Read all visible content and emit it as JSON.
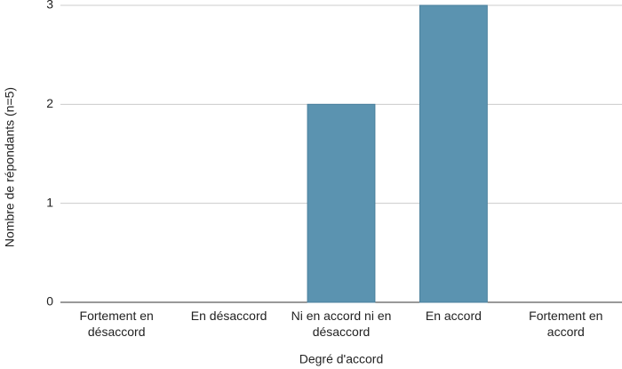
{
  "chart_data": {
    "type": "bar",
    "x_label": "Degré d'accord",
    "y_label": "Nombre de répondants (n=5)",
    "categories": [
      "Fortement en désaccord",
      "En désaccord",
      "Ni en accord ni en désaccord",
      "En accord",
      "Fortement en accord"
    ],
    "values": [
      0,
      0,
      2,
      3,
      0
    ],
    "color": "#5b93b0",
    "ylim": [
      0,
      3
    ],
    "yticks": [
      0,
      1,
      2,
      3
    ],
    "grid": true
  }
}
